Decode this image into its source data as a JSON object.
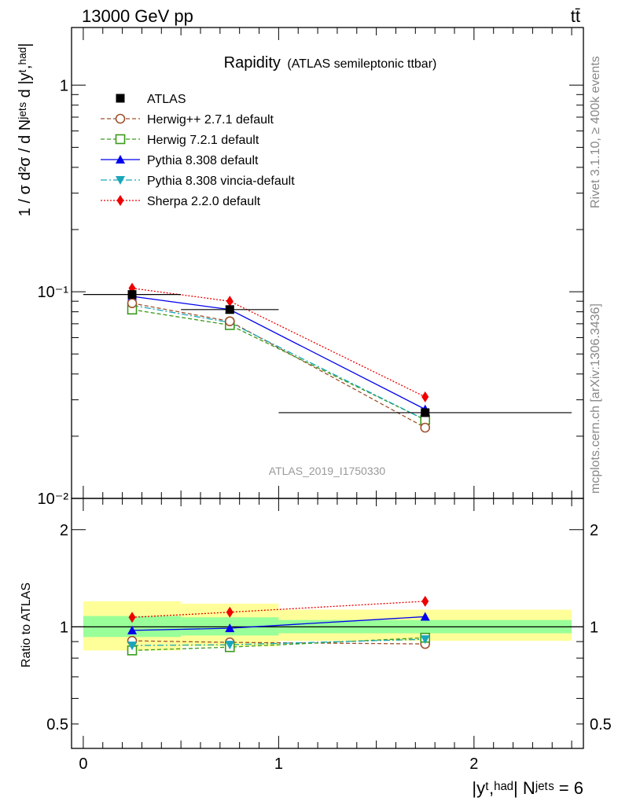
{
  "header": {
    "energy_label": "13000 GeV pp",
    "process_label": "tt̄"
  },
  "side_labels": {
    "rivet": "Rivet 3.1.10, ≥ 400k events",
    "source": "mcplots.cern.ch [arXiv:1306.3436]"
  },
  "analysis_id": "ATLAS_2019_I1750330",
  "colors": {
    "atlas": "#000000",
    "herwigpp": "#a0522d",
    "herwig7": "#3a9a1a",
    "pythia": "#0000ee",
    "vincia": "#1aa6b8",
    "sherpa": "#ee0000",
    "band_inner": "#99ff99",
    "band_outer": "#ffff99"
  },
  "chart_data": [
    {
      "type": "line",
      "panel": "main",
      "title": "Rapidity",
      "subtitle": "(ATLAS semileptonic ttbar)",
      "ylabel": "1 / σ d²σ / d Nʲᵉᵗˢ d |yᵗ,ʰᵃᵈ|",
      "yscale": "log",
      "ylim": [
        0.01,
        1.9
      ],
      "xlim": [
        -0.06,
        2.56
      ],
      "yticks": [
        {
          "value": 1,
          "label": "1"
        },
        {
          "value": 0.1,
          "label": "10⁻¹"
        },
        {
          "value": 0.01,
          "label": "10⁻²"
        }
      ],
      "legend_position": "top-left",
      "x": [
        0.25,
        0.75,
        1.75
      ],
      "bin_edges": [
        0,
        0.5,
        1,
        2.5
      ],
      "series": [
        {
          "key": "atlas",
          "name": "ATLAS",
          "values": [
            0.097,
            0.082,
            0.026
          ],
          "marker": "square-filled",
          "line": "none"
        },
        {
          "key": "herwigpp",
          "name": "Herwig++ 2.7.1 default",
          "values": [
            0.088,
            0.072,
            0.022
          ],
          "marker": "circle-open",
          "line": "dashed"
        },
        {
          "key": "herwig7",
          "name": "Herwig 7.2.1 default",
          "values": [
            0.082,
            0.069,
            0.024
          ],
          "marker": "square-open",
          "line": "dashed"
        },
        {
          "key": "pythia",
          "name": "Pythia 8.308 default",
          "values": [
            0.095,
            0.082,
            0.027
          ],
          "marker": "triangle-up",
          "line": "solid"
        },
        {
          "key": "vincia",
          "name": "Pythia 8.308 vincia-default",
          "values": [
            0.086,
            0.071,
            0.024
          ],
          "marker": "triangle-down",
          "line": "dashdot"
        },
        {
          "key": "sherpa",
          "name": "Sherpa 2.2.0 default",
          "values": [
            0.104,
            0.09,
            0.031
          ],
          "marker": "diamond",
          "line": "dotted"
        }
      ]
    },
    {
      "type": "line",
      "panel": "ratio",
      "ylabel": "Ratio to ATLAS",
      "xlabel": "|yᵗ,ʰᵃᵈ| Nʲᵉᵗˢ = 6",
      "yscale": "log",
      "ylim": [
        0.42,
        2.5
      ],
      "yticks": [
        {
          "value": 2,
          "label": "2"
        },
        {
          "value": 1,
          "label": "1"
        },
        {
          "value": 0.5,
          "label": "0.5"
        }
      ],
      "xticks": [
        {
          "value": 0,
          "label": "0"
        },
        {
          "value": 1,
          "label": "1"
        },
        {
          "value": 2,
          "label": "2"
        }
      ],
      "bands": [
        {
          "x0": 0,
          "x1": 0.5,
          "inner": [
            0.93,
            1.08
          ],
          "outer": [
            0.845,
            1.2
          ]
        },
        {
          "x0": 0.5,
          "x1": 1,
          "inner": [
            0.94,
            1.07
          ],
          "outer": [
            0.87,
            1.18
          ]
        },
        {
          "x0": 1,
          "x1": 2.5,
          "inner": [
            0.955,
            1.05
          ],
          "outer": [
            0.905,
            1.13
          ]
        }
      ],
      "x": [
        0.25,
        0.75,
        1.75
      ],
      "series": [
        {
          "key": "herwigpp",
          "values": [
            0.905,
            0.895,
            0.885
          ],
          "marker": "circle-open",
          "line": "dashed"
        },
        {
          "key": "herwig7",
          "values": [
            0.845,
            0.865,
            0.925
          ],
          "marker": "square-open",
          "line": "dashed"
        },
        {
          "key": "pythia",
          "values": [
            0.975,
            0.99,
            1.075
          ],
          "marker": "triangle-up",
          "line": "solid"
        },
        {
          "key": "vincia",
          "values": [
            0.875,
            0.88,
            0.915
          ],
          "marker": "triangle-down",
          "line": "dashdot"
        },
        {
          "key": "sherpa",
          "values": [
            1.07,
            1.11,
            1.2
          ],
          "marker": "diamond",
          "line": "dotted"
        }
      ]
    }
  ]
}
